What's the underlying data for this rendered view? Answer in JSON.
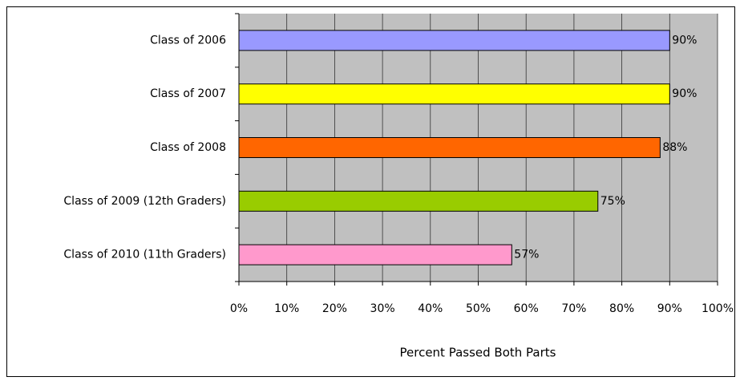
{
  "chart_data": {
    "type": "barh",
    "categories": [
      "Class of 2006",
      "Class of 2007",
      "Class of 2008",
      "Class of 2009 (12th Graders)",
      "Class of 2010 (11th Graders)"
    ],
    "values": [
      90,
      90,
      88,
      75,
      57
    ],
    "value_labels": [
      "90%",
      "90%",
      "88%",
      "75%",
      "57%"
    ],
    "colors": [
      "#9999ff",
      "#ffff00",
      "#ff6600",
      "#99cc00",
      "#ff99cc"
    ],
    "xlabel": "Percent Passed Both Parts",
    "xlim": [
      0,
      100
    ],
    "xticks": [
      {
        "value": 0,
        "label": "0%"
      },
      {
        "value": 10,
        "label": "10%"
      },
      {
        "value": 20,
        "label": "20%"
      },
      {
        "value": 30,
        "label": "30%"
      },
      {
        "value": 40,
        "label": "40%"
      },
      {
        "value": 50,
        "label": "50%"
      },
      {
        "value": 60,
        "label": "60%"
      },
      {
        "value": 70,
        "label": "70%"
      },
      {
        "value": 80,
        "label": "80%"
      },
      {
        "value": 90,
        "label": "90%"
      },
      {
        "value": 100,
        "label": "100%"
      }
    ],
    "grid": true
  }
}
